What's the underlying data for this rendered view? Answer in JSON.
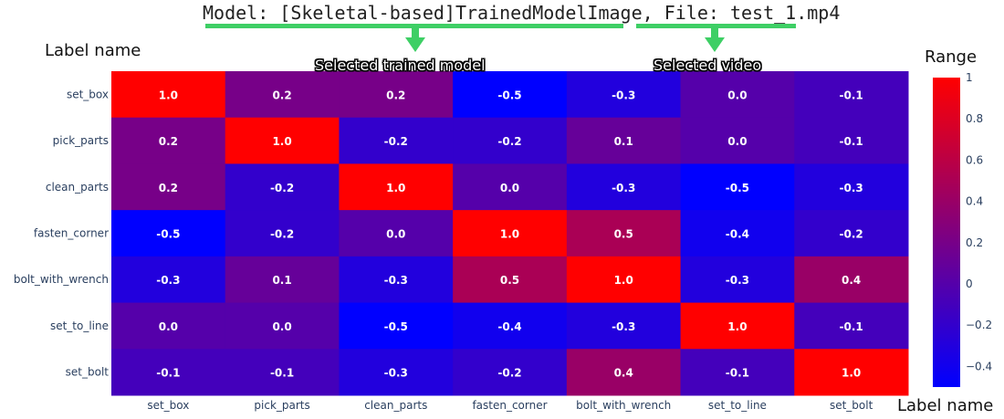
{
  "header": {
    "title": "Model: [Skeletal-based]TrainedModelImage, File: test_1.mp4"
  },
  "annotations": {
    "selected_model": "Selected trained model",
    "selected_video": "Selected video",
    "label_name_left": "Label name",
    "label_name_bottom": "Label name",
    "range_label": "Range",
    "accent_color": "#3ecf65"
  },
  "chart_data": {
    "type": "heatmap",
    "title": "",
    "xlabel": "Label name",
    "ylabel": "Label name",
    "colorbar_title": "Range",
    "colorscale": [
      "#0000ff",
      "#ff0000"
    ],
    "zlim": [
      -0.5,
      1.0
    ],
    "colorbar_ticks": [
      "1",
      "0.8",
      "0.6",
      "0.4",
      "0.2",
      "0",
      "−0.2",
      "−0.4"
    ],
    "colorbar_tick_values": [
      1,
      0.8,
      0.6,
      0.4,
      0.2,
      0,
      -0.2,
      -0.4
    ],
    "x_categories": [
      "set_box",
      "pick_parts",
      "clean_parts",
      "fasten_corner",
      "bolt_with_wrench",
      "set_to_line",
      "set_bolt"
    ],
    "y_categories": [
      "set_box",
      "pick_parts",
      "clean_parts",
      "fasten_corner",
      "bolt_with_wrench",
      "set_to_line",
      "set_bolt"
    ],
    "values": [
      [
        1.0,
        0.2,
        0.2,
        -0.5,
        -0.3,
        0.0,
        -0.1
      ],
      [
        0.2,
        1.0,
        -0.2,
        -0.2,
        0.1,
        0.0,
        -0.1
      ],
      [
        0.2,
        -0.2,
        1.0,
        0.0,
        -0.3,
        -0.5,
        -0.3
      ],
      [
        -0.5,
        -0.2,
        0.0,
        1.0,
        0.5,
        -0.4,
        -0.2
      ],
      [
        -0.3,
        0.1,
        -0.3,
        0.5,
        1.0,
        -0.3,
        0.4
      ],
      [
        0.0,
        0.0,
        -0.5,
        -0.4,
        -0.3,
        1.0,
        -0.1
      ],
      [
        -0.1,
        -0.1,
        -0.3,
        -0.2,
        0.4,
        -0.1,
        1.0
      ]
    ]
  }
}
